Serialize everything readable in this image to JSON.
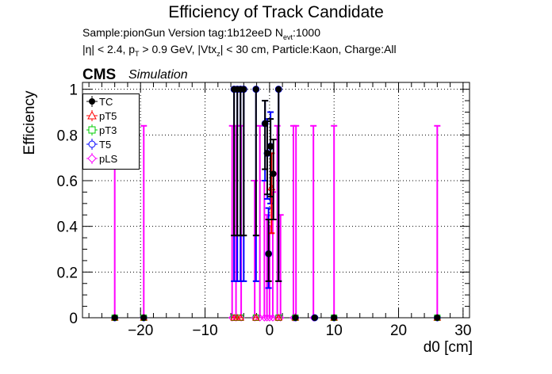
{
  "title": "Efficiency of Track Candidate",
  "subtitle_line1": "Sample:pionGun   Version tag:1b12eeD  N",
  "subtitle_line1_sub": "evt",
  "subtitle_line1_end": ":1000",
  "subtitle_line2_a": "|η| < 2.4, p",
  "subtitle_line2_sub1": "T",
  "subtitle_line2_b": " > 0.9 GeV, |Vtx",
  "subtitle_line2_sub2": "z",
  "subtitle_line2_c": "| < 30 cm, Particle:Kaon, Charge:All",
  "cms_label": "CMS",
  "simulation_label": "Simulation",
  "legend": [
    {
      "label": "TC",
      "color": "#000000",
      "marker": "filled-circle"
    },
    {
      "label": "pT5",
      "color": "#ff0000",
      "marker": "open-triangle"
    },
    {
      "label": "pT3",
      "color": "#00cc00",
      "marker": "open-square"
    },
    {
      "label": "T5",
      "color": "#0000ff",
      "marker": "open-circle"
    },
    {
      "label": "pLS",
      "color": "#ff00ff",
      "marker": "open-diamond"
    }
  ],
  "chart_data": {
    "type": "scatter",
    "title": "Efficiency of Track Candidate",
    "xlabel": "d0 [cm]",
    "ylabel": "Efficiency",
    "xlim": [
      -29,
      31
    ],
    "ylim": [
      0,
      1.03
    ],
    "xticks": [
      -20,
      -10,
      0,
      10,
      20,
      30
    ],
    "yticks": [
      0,
      0.2,
      0.4,
      0.6,
      0.8,
      1
    ],
    "grid": true,
    "legend_position": "top-left",
    "series": [
      {
        "name": "TC",
        "color": "#000000",
        "points": [
          {
            "x": -24,
            "y": 0,
            "yerr_hi": 0
          },
          {
            "x": -19.5,
            "y": 0,
            "yerr_hi": 0
          },
          {
            "x": -5.5,
            "y": 1,
            "yerr_lo": 0.64
          },
          {
            "x": -5.0,
            "y": 1,
            "yerr_lo": 0.64
          },
          {
            "x": -4.5,
            "y": 1,
            "yerr_lo": 0.64
          },
          {
            "x": -4.0,
            "y": 1,
            "yerr_lo": 0.64
          },
          {
            "x": -2.1,
            "y": 1,
            "yerr_lo": 0.64
          },
          {
            "x": -0.7,
            "y": 0.85,
            "yerr_lo": 0.2,
            "yerr_hi": 0.1
          },
          {
            "x": -0.35,
            "y": 0.72,
            "yerr_lo": 0.18,
            "yerr_hi": 0.14
          },
          {
            "x": -0.15,
            "y": 0.28,
            "yerr_lo": 0.12,
            "yerr_hi": 0.15
          },
          {
            "x": 0.15,
            "y": 0.75,
            "yerr_lo": 0.22,
            "yerr_hi": 0.12
          },
          {
            "x": 0.6,
            "y": 0.63,
            "yerr_lo": 0.2,
            "yerr_hi": 0.15
          },
          {
            "x": 1.4,
            "y": 1,
            "yerr_lo": 0.84
          },
          {
            "x": 4,
            "y": 0,
            "yerr_hi": 0
          },
          {
            "x": 7,
            "y": 0,
            "yerr_hi": 0
          },
          {
            "x": 10,
            "y": 0,
            "yerr_hi": 0
          },
          {
            "x": 26,
            "y": 0,
            "yerr_hi": 0
          }
        ]
      },
      {
        "name": "pT5",
        "color": "#ff0000",
        "points": [
          {
            "x": -24,
            "y": 0
          },
          {
            "x": -19.5,
            "y": 0
          },
          {
            "x": -5.5,
            "y": 0
          },
          {
            "x": -5.0,
            "y": 0
          },
          {
            "x": -4.5,
            "y": 0
          },
          {
            "x": -2.1,
            "y": 0
          },
          {
            "x": 0.3,
            "y": 0.57,
            "yerr_lo": 0.2,
            "yerr_hi": 0.15
          },
          {
            "x": 1.4,
            "y": 0
          },
          {
            "x": 4,
            "y": 0
          },
          {
            "x": 10,
            "y": 0
          },
          {
            "x": 26,
            "y": 0
          }
        ]
      },
      {
        "name": "pT3",
        "color": "#00cc00",
        "points": [
          {
            "x": -24,
            "y": 0
          },
          {
            "x": -19.5,
            "y": 0
          },
          {
            "x": -5.5,
            "y": 0
          },
          {
            "x": -4.5,
            "y": 0
          },
          {
            "x": -2.1,
            "y": 0
          },
          {
            "x": 1.4,
            "y": 0
          },
          {
            "x": 4,
            "y": 0
          },
          {
            "x": 10,
            "y": 0
          },
          {
            "x": 26,
            "y": 0
          }
        ]
      },
      {
        "name": "T5",
        "color": "#0000ff",
        "points": [
          {
            "x": -24,
            "y": 0
          },
          {
            "x": -19.5,
            "y": 0
          },
          {
            "x": -5.5,
            "y": 1,
            "yerr_lo": 0.84
          },
          {
            "x": -5.0,
            "y": 1,
            "yerr_lo": 0.84
          },
          {
            "x": -4.5,
            "y": 1,
            "yerr_lo": 0.84
          },
          {
            "x": -4.0,
            "y": 1,
            "yerr_lo": 0.84
          },
          {
            "x": -2.1,
            "y": 1,
            "yerr_lo": 0.84
          },
          {
            "x": -0.7,
            "y": 0.85,
            "yerr_lo": 0.25,
            "yerr_hi": 0.1
          },
          {
            "x": -0.35,
            "y": 0.72,
            "yerr_lo": 0.2,
            "yerr_hi": 0.15
          },
          {
            "x": -0.15,
            "y": 0.28,
            "yerr_lo": 0.15,
            "yerr_hi": 0.2
          },
          {
            "x": 0.15,
            "y": 0.75,
            "yerr_lo": 0.25,
            "yerr_hi": 0.15
          },
          {
            "x": 1.4,
            "y": 1,
            "yerr_lo": 0.84
          },
          {
            "x": 4,
            "y": 0
          },
          {
            "x": 7,
            "y": 0
          },
          {
            "x": 10,
            "y": 0
          },
          {
            "x": 26,
            "y": 0
          }
        ]
      },
      {
        "name": "pLS",
        "color": "#ff00ff",
        "points": [
          {
            "x": -24,
            "y": 0,
            "yerr_hi": 0.84
          },
          {
            "x": -19.5,
            "y": 0,
            "yerr_hi": 0.84
          },
          {
            "x": -5.8,
            "y": 0,
            "yerr_hi": 0.84
          },
          {
            "x": -5.2,
            "y": 0,
            "yerr_hi": 0.84
          },
          {
            "x": -4.4,
            "y": 0,
            "yerr_hi": 0.84
          },
          {
            "x": -2.3,
            "y": 0,
            "yerr_hi": 0.6
          },
          {
            "x": -1.5,
            "y": 0,
            "yerr_hi": 0.84
          },
          {
            "x": -0.8,
            "y": 0,
            "yerr_hi": 0.6
          },
          {
            "x": -0.4,
            "y": 0,
            "yerr_hi": 0.45
          },
          {
            "x": 0.0,
            "y": 0,
            "yerr_hi": 0.4
          },
          {
            "x": 0.5,
            "y": 0,
            "yerr_hi": 0.55
          },
          {
            "x": 1.2,
            "y": 0,
            "yerr_hi": 0.84
          },
          {
            "x": 1.7,
            "y": 0,
            "yerr_hi": 0.45
          },
          {
            "x": 3.7,
            "y": 0,
            "yerr_hi": 0.84
          },
          {
            "x": 4.1,
            "y": 0,
            "yerr_hi": 0.84
          },
          {
            "x": 6.8,
            "y": 0,
            "yerr_hi": 0.84
          },
          {
            "x": 10,
            "y": 0,
            "yerr_hi": 0.84
          },
          {
            "x": 26,
            "y": 0,
            "yerr_hi": 0.84
          }
        ]
      }
    ]
  }
}
